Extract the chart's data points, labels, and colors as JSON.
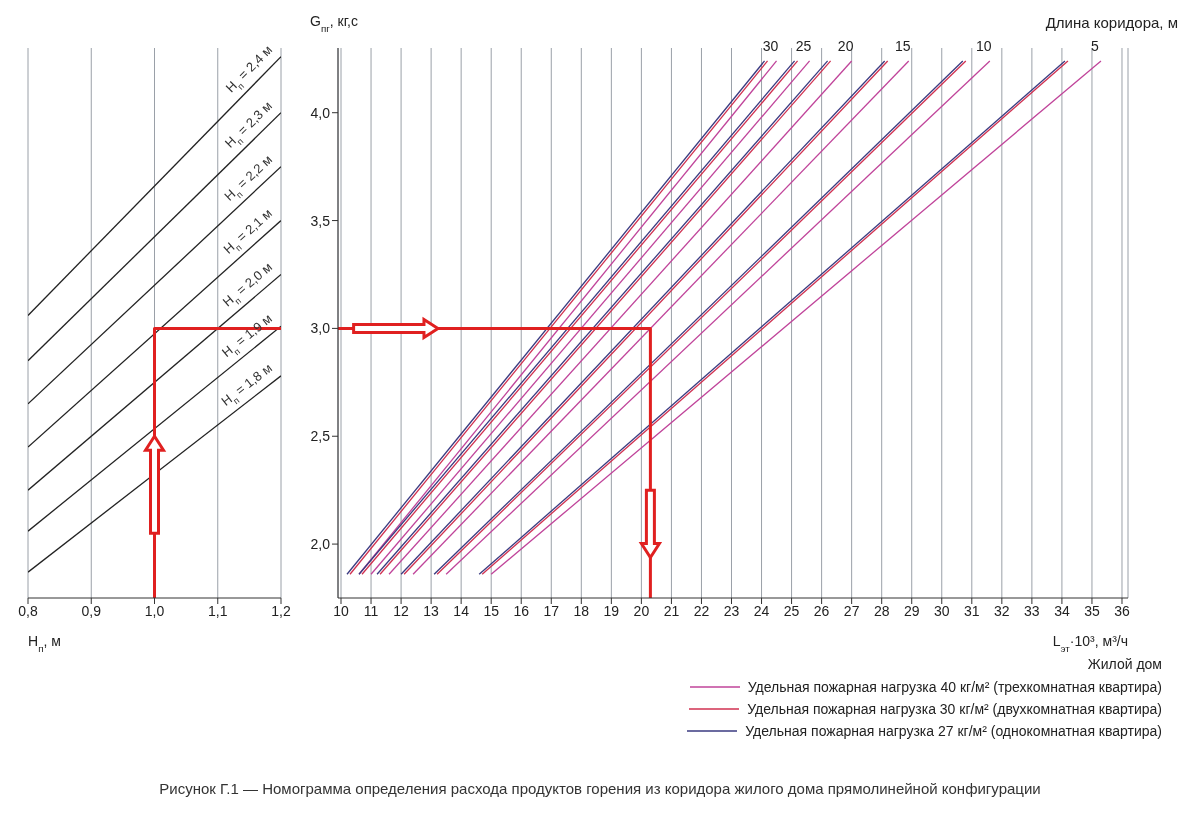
{
  "chart_data": [
    {
      "type": "line",
      "xlabel": "H$_{п}$, м",
      "xlim": [
        0.8,
        1.2
      ],
      "xticks": [
        {
          "value": 0.8,
          "label": "0,8"
        },
        {
          "value": 0.9,
          "label": "0,9"
        },
        {
          "value": 1.0,
          "label": "1,0"
        },
        {
          "value": 1.1,
          "label": "1,1"
        },
        {
          "value": 1.2,
          "label": "1,2"
        }
      ],
      "ylim": [
        1.75,
        4.3
      ],
      "tick_labels": "x",
      "grid": "x",
      "marker": "none",
      "line_style": "solid",
      "series": [
        {
          "name": "H$_{п}$ = 2,4 м",
          "color": "#222222",
          "x": [
            0.8,
            1.2
          ],
          "values": [
            3.06,
            4.26
          ]
        },
        {
          "name": "H$_{п}$ = 2,3 м",
          "color": "#222222",
          "x": [
            0.8,
            1.2
          ],
          "values": [
            2.85,
            4.0
          ]
        },
        {
          "name": "H$_{п}$ = 2,2 м",
          "color": "#222222",
          "x": [
            0.8,
            1.2
          ],
          "values": [
            2.65,
            3.75
          ]
        },
        {
          "name": "H$_{п}$ = 2,1 м",
          "color": "#222222",
          "x": [
            0.8,
            1.2
          ],
          "values": [
            2.45,
            3.5
          ]
        },
        {
          "name": "H$_{п}$ = 2,0 м",
          "color": "#222222",
          "x": [
            0.8,
            1.2
          ],
          "values": [
            2.25,
            3.25
          ]
        },
        {
          "name": "H$_{п}$ = 1,9 м",
          "color": "#222222",
          "x": [
            0.8,
            1.2
          ],
          "values": [
            2.06,
            3.01
          ]
        },
        {
          "name": "H$_{п}$ = 1,8 м",
          "color": "#222222",
          "x": [
            0.8,
            1.2
          ],
          "values": [
            1.87,
            2.78
          ]
        },
        {
          "color": "#e02020",
          "x": [
            1.0,
            1.0,
            1.2
          ],
          "values": [
            1.75,
            3.0,
            3.0
          ]
        }
      ]
    },
    {
      "type": "line",
      "xlabel": "L$_{эт}$·10³, м³/ч",
      "ylabel": "G$_{пг}$, кг,с",
      "legend_title": "Жилой дом",
      "legend": "bottom right",
      "xlim": [
        9.9,
        36.2
      ],
      "xticks": [
        10,
        11,
        12,
        13,
        14,
        15,
        16,
        17,
        18,
        19,
        20,
        21,
        22,
        23,
        24,
        25,
        26,
        27,
        28,
        29,
        30,
        31,
        32,
        33,
        34,
        35,
        36
      ],
      "ylim": [
        1.75,
        4.3
      ],
      "yticks": [
        {
          "value": 2,
          "label": "2,0"
        },
        {
          "value": 2.5,
          "label": "2,5"
        },
        {
          "value": 3,
          "label": "3,0"
        },
        {
          "value": 3.5,
          "label": "3,5"
        },
        {
          "value": 4,
          "label": "4,0"
        }
      ],
      "grid": "x",
      "marker": "none",
      "line_style": "solid",
      "annotations": [
        "Длина коридора, м",
        "Рисунок Г.1 — Номограмма определения расхода продуктов горения из коридора жилого дома прямолинейной конфигурации",
        {
          "text": "30",
          "x": 24.5,
          "y": 4.24
        },
        {
          "text": "25",
          "x": 25.6,
          "y": 4.24
        },
        {
          "text": "20",
          "x": 27.0,
          "y": 4.24
        },
        {
          "text": "15",
          "x": 28.9,
          "y": 4.24
        },
        {
          "text": "10",
          "x": 31.6,
          "y": 4.24
        },
        {
          "text": "5",
          "x": 35.3,
          "y": 4.24
        }
      ],
      "series": [
        {
          "name": "Удельная пожарная нагрузка 40 кг/м² (трехкомнатная квартира)",
          "color": "#c0449a",
          "x": [
            10.6,
            24.5
          ],
          "values": [
            1.86,
            4.24
          ]
        },
        {
          "name": "Удельная пожарная нагрузка 30 кг/м² (двухкомнатная квартира)",
          "color": "#d03050",
          "x": [
            10.3,
            24.2
          ],
          "values": [
            1.86,
            4.24
          ]
        },
        {
          "name": "Удельная пожарная нагрузка 27 кг/м² (однокомнатная квартира)",
          "color": "#3a3a80",
          "x": [
            10.2,
            24.1
          ],
          "values": [
            1.86,
            4.24
          ]
        },
        {
          "color": "#c0449a",
          "x": [
            11.0,
            25.6
          ],
          "values": [
            1.86,
            4.24
          ]
        },
        {
          "color": "#d03050",
          "x": [
            10.7,
            25.2
          ],
          "values": [
            1.86,
            4.24
          ]
        },
        {
          "color": "#3a3a80",
          "x": [
            10.6,
            25.1
          ],
          "values": [
            1.86,
            4.24
          ]
        },
        {
          "color": "#c0449a",
          "x": [
            11.6,
            27.0
          ],
          "values": [
            1.86,
            4.24
          ]
        },
        {
          "color": "#d03050",
          "x": [
            11.3,
            26.3
          ],
          "values": [
            1.86,
            4.24
          ]
        },
        {
          "color": "#3a3a80",
          "x": [
            11.2,
            26.2
          ],
          "values": [
            1.86,
            4.24
          ]
        },
        {
          "color": "#c0449a",
          "x": [
            12.4,
            28.9
          ],
          "values": [
            1.86,
            4.24
          ]
        },
        {
          "color": "#d03050",
          "x": [
            12.1,
            28.2
          ],
          "values": [
            1.86,
            4.24
          ]
        },
        {
          "color": "#3a3a80",
          "x": [
            12.0,
            28.1
          ],
          "values": [
            1.86,
            4.24
          ]
        },
        {
          "color": "#c0449a",
          "x": [
            13.5,
            31.6
          ],
          "values": [
            1.86,
            4.24
          ]
        },
        {
          "color": "#d03050",
          "x": [
            13.2,
            30.8
          ],
          "values": [
            1.86,
            4.24
          ]
        },
        {
          "color": "#3a3a80",
          "x": [
            13.1,
            30.7
          ],
          "values": [
            1.86,
            4.24
          ]
        },
        {
          "color": "#c0449a",
          "x": [
            15.0,
            35.3
          ],
          "values": [
            1.86,
            4.24
          ]
        },
        {
          "color": "#d03050",
          "x": [
            14.7,
            34.2
          ],
          "values": [
            1.86,
            4.24
          ]
        },
        {
          "color": "#3a3a80",
          "x": [
            14.6,
            34.1
          ],
          "values": [
            1.86,
            4.24
          ]
        },
        {
          "color": "#e02020",
          "x": [
            9.9,
            20.3,
            20.3
          ],
          "values": [
            3.0,
            3.0,
            1.75
          ]
        }
      ]
    }
  ]
}
